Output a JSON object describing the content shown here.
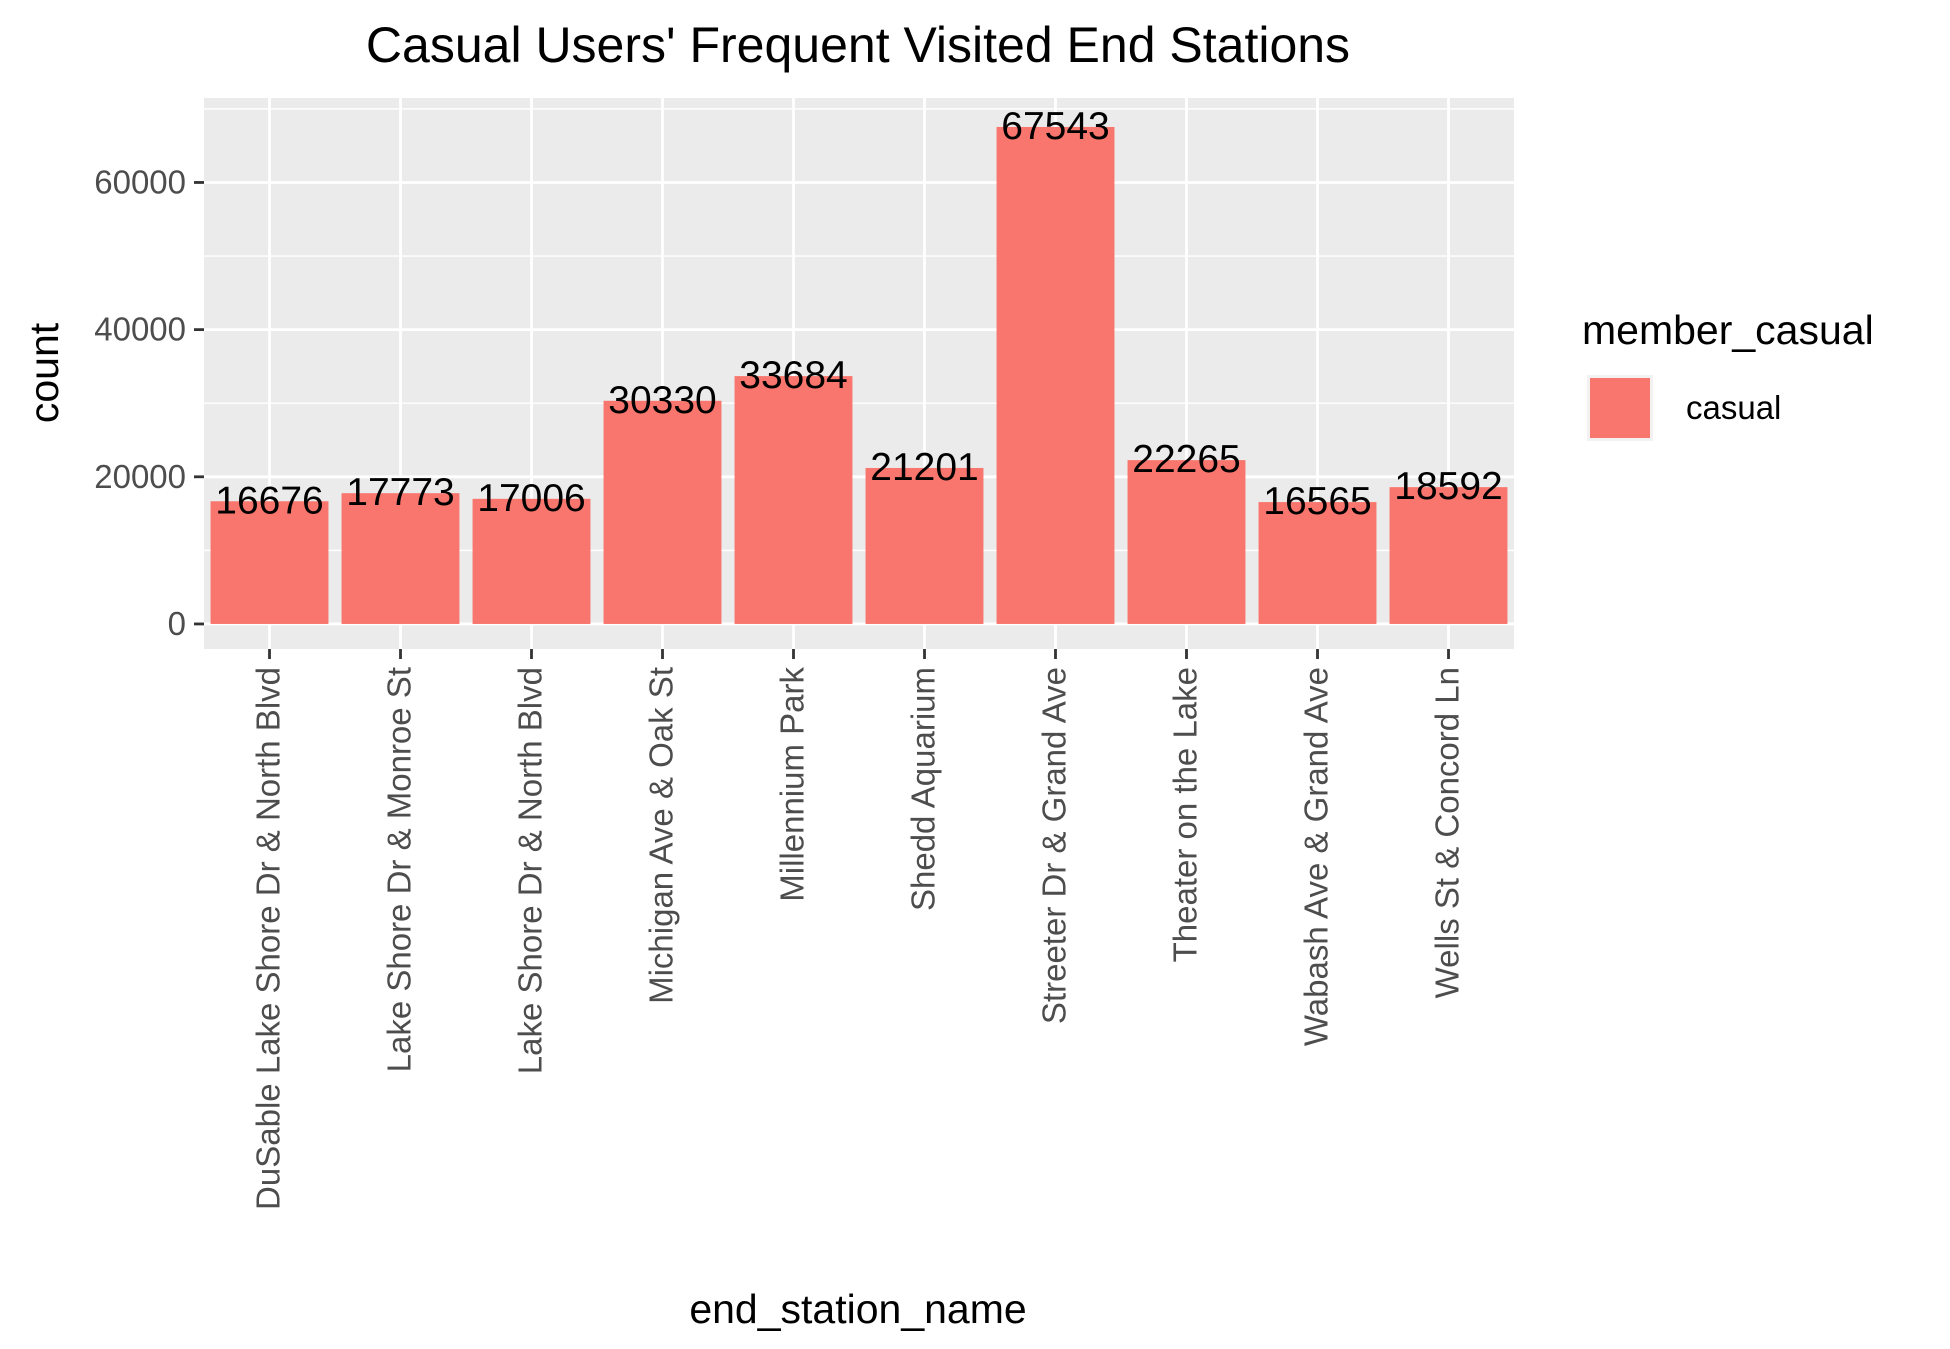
{
  "chart_data": {
    "type": "bar",
    "title": "Casual Users' Frequent Visited End Stations",
    "xlabel": "end_station_name",
    "ylabel": "count",
    "categories": [
      "DuSable Lake Shore Dr & North Blvd",
      "Lake Shore Dr & Monroe St",
      "Lake Shore Dr & North Blvd",
      "Michigan Ave & Oak St",
      "Millennium Park",
      "Shedd Aquarium",
      "Streeter Dr & Grand Ave",
      "Theater on the Lake",
      "Wabash Ave & Grand Ave",
      "Wells St & Concord Ln"
    ],
    "series": [
      {
        "name": "casual",
        "color": "#F8766D",
        "values": [
          16676,
          17773,
          17006,
          30330,
          33684,
          21201,
          67543,
          22265,
          16565,
          18592
        ]
      }
    ],
    "ylim": [
      -3403,
      71479
    ],
    "yticks": [
      0,
      20000,
      40000,
      60000
    ],
    "grid": true,
    "legend": {
      "title": "member_casual",
      "placement": "right",
      "entries": [
        "casual"
      ]
    },
    "colors": {
      "panel_background": "#EBEBEB",
      "gridline": "#FFFFFF",
      "bar": "#F8766D"
    }
  }
}
